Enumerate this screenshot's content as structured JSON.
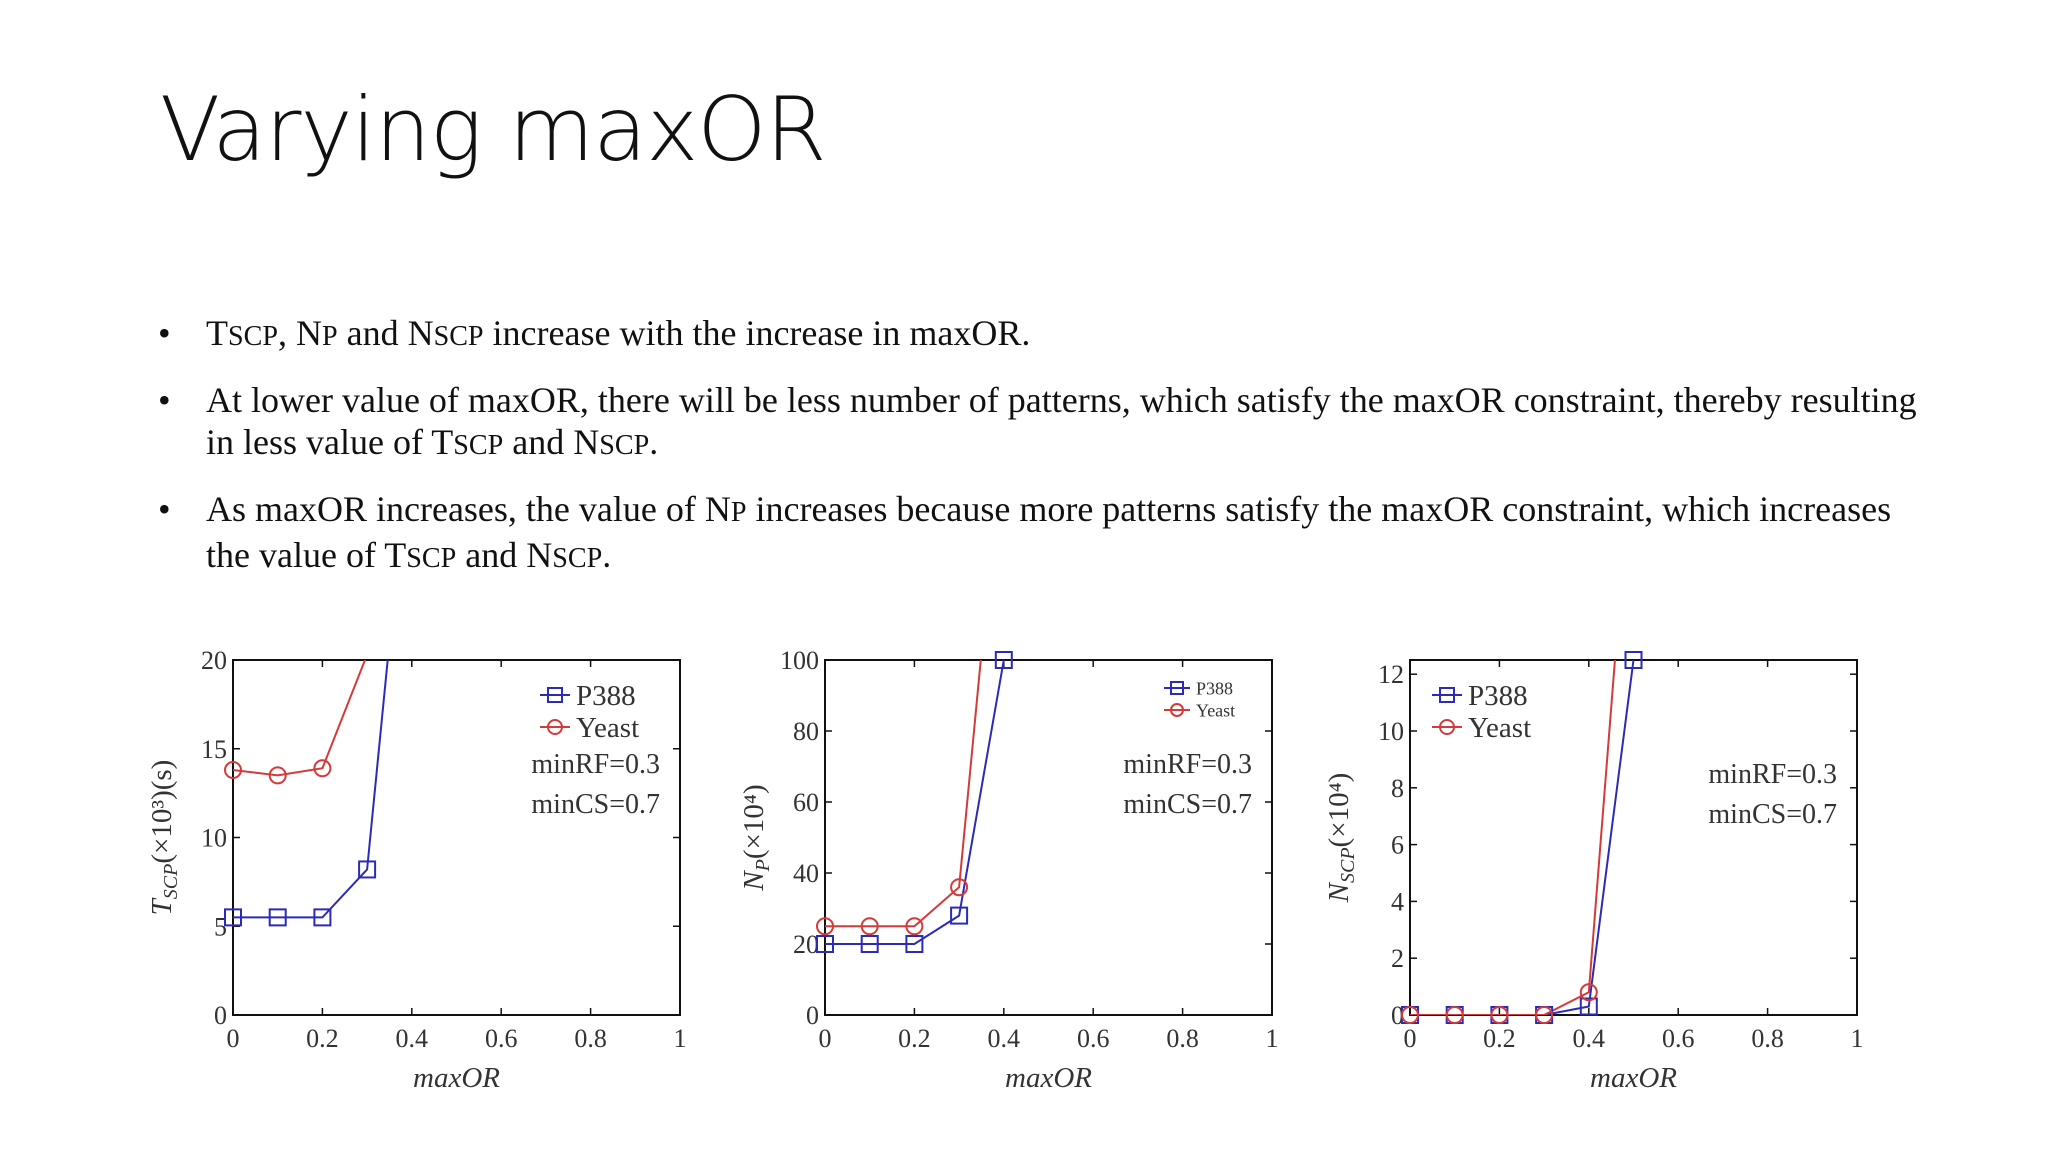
{
  "slide": {
    "title": "Varying maxOR",
    "bullets": [
      [
        {
          "t": "T"
        },
        {
          "t": "SCP",
          "sc": true
        },
        {
          "t": ", N"
        },
        {
          "t": "P",
          "sc": true
        },
        {
          "t": " and N"
        },
        {
          "t": "SCP",
          "sc": true
        },
        {
          "t": " increase with the increase in maxOR."
        }
      ],
      [
        {
          "t": "At lower value of maxOR, there will be less number of patterns, which satisfy the maxOR constraint, thereby resulting in less value of T"
        },
        {
          "t": "SCP",
          "sc": true
        },
        {
          "t": " and N"
        },
        {
          "t": "SCP",
          "sc": true
        },
        {
          "t": "."
        }
      ],
      [
        {
          "t": "As maxOR increases, the value of N"
        },
        {
          "t": "P",
          "sc": true
        },
        {
          "t": " increases because more patterns satisfy the maxOR constraint, which increases the value of T"
        },
        {
          "t": "SCP",
          "sc": true
        },
        {
          "t": " and N"
        },
        {
          "t": "SCP",
          "sc": true
        },
        {
          "t": "."
        }
      ]
    ],
    "bullet_symbol": "•"
  },
  "colors": {
    "p388": "#2b2bb8",
    "yeast": "#d43a3a",
    "axis": "#111111"
  },
  "chart_data": [
    {
      "type": "line",
      "xlabel": "maxOR",
      "ylabel_main": "T",
      "ylabel_sub": "SCP",
      "ylabel_suffix": "(×10³)(s)",
      "xlim": [
        0,
        1
      ],
      "ylim": [
        0,
        20
      ],
      "xticks": [
        0,
        0.2,
        0.4,
        0.6,
        0.8,
        1
      ],
      "yticks": [
        0,
        5,
        10,
        15,
        20
      ],
      "legend_position": "top-right",
      "legend_size": "large",
      "annotations": [
        "minRF=0.3",
        "minCS=0.7"
      ],
      "series": [
        {
          "name": "P388",
          "marker": "square",
          "x": [
            0,
            0.1,
            0.2,
            0.3,
            0.35
          ],
          "y": [
            5.5,
            5.5,
            5.5,
            8.2,
            21
          ]
        },
        {
          "name": "Yeast",
          "marker": "circle",
          "x": [
            0,
            0.1,
            0.2,
            0.3
          ],
          "y": [
            13.8,
            13.5,
            13.9,
            20.3
          ]
        }
      ]
    },
    {
      "type": "line",
      "xlabel": "maxOR",
      "ylabel_main": "N",
      "ylabel_sub": "P",
      "ylabel_suffix": "(×10⁴)",
      "xlim": [
        0,
        1
      ],
      "ylim": [
        0,
        100
      ],
      "xticks": [
        0,
        0.2,
        0.4,
        0.6,
        0.8,
        1
      ],
      "yticks": [
        0,
        20,
        40,
        60,
        80,
        100
      ],
      "legend_position": "top-right",
      "legend_size": "small",
      "annotations": [
        "minRF=0.3",
        "minCS=0.7"
      ],
      "series": [
        {
          "name": "P388",
          "marker": "square",
          "x": [
            0,
            0.1,
            0.2,
            0.3,
            0.4
          ],
          "y": [
            20,
            20,
            20,
            28,
            100
          ]
        },
        {
          "name": "Yeast",
          "marker": "circle",
          "x": [
            0,
            0.1,
            0.2,
            0.3,
            0.35
          ],
          "y": [
            25,
            25,
            25,
            36,
            102
          ]
        }
      ]
    },
    {
      "type": "line",
      "xlabel": "maxOR",
      "ylabel_main": "N",
      "ylabel_sub": "SCP",
      "ylabel_suffix": "(×10⁴)",
      "xlim": [
        0,
        1
      ],
      "ylim": [
        0,
        12.5
      ],
      "xticks": [
        0,
        0.2,
        0.4,
        0.6,
        0.8,
        1
      ],
      "yticks": [
        0,
        2,
        4,
        6,
        8,
        10,
        12
      ],
      "legend_position": "top-left",
      "legend_size": "large",
      "annotations": [
        "minRF=0.3",
        "minCS=0.7"
      ],
      "series": [
        {
          "name": "P388",
          "marker": "square",
          "x": [
            0,
            0.1,
            0.2,
            0.3,
            0.4,
            0.5
          ],
          "y": [
            0,
            0,
            0,
            0,
            0.3,
            12.5
          ]
        },
        {
          "name": "Yeast",
          "marker": "circle",
          "x": [
            0,
            0.1,
            0.2,
            0.3,
            0.4,
            0.46
          ],
          "y": [
            0,
            0,
            0,
            0,
            0.8,
            12.8
          ]
        }
      ]
    }
  ]
}
